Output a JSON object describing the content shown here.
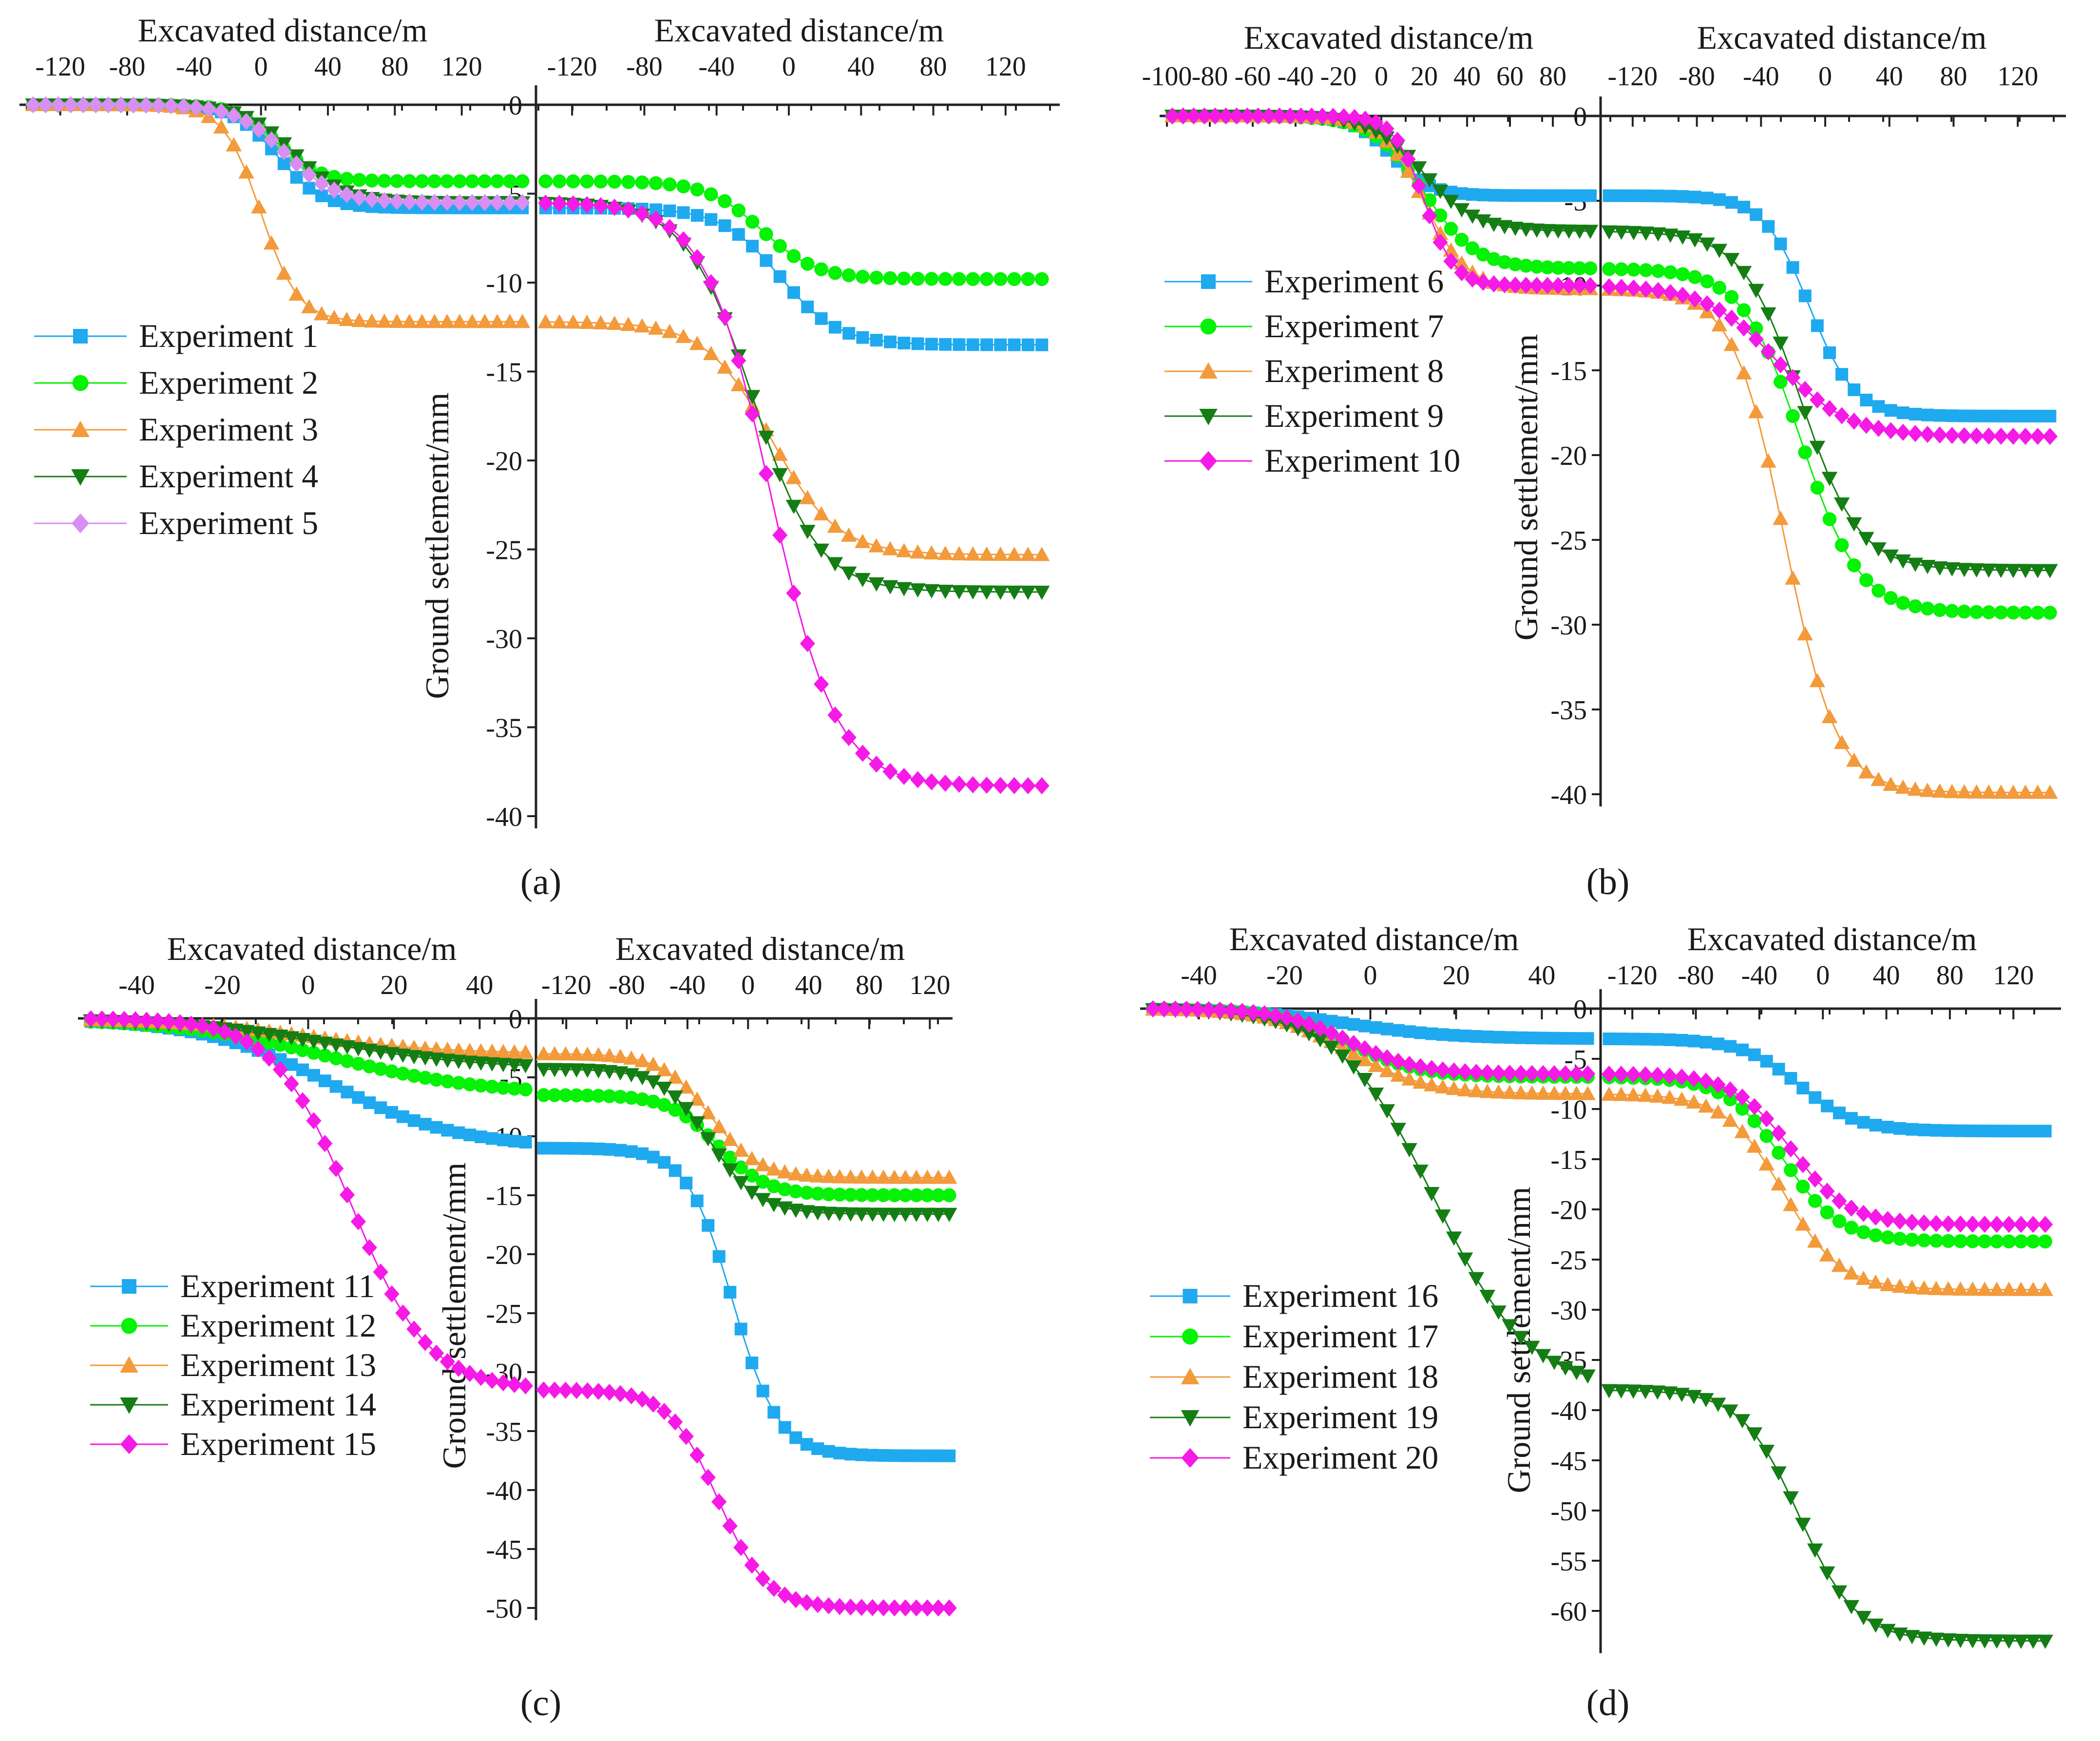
{
  "panel_labels": {
    "a": "(a)",
    "b": "(b)",
    "c": "(c)",
    "d": "(d)"
  },
  "axis_text": {
    "x_title": "Excavated distance/m",
    "y_title": "Ground settlement/mm"
  },
  "legends": {
    "a": [
      "Experiment 1",
      "Experiment 2",
      "Experiment 3",
      "Experiment 4",
      "Experiment 5"
    ],
    "b": [
      "Experiment 6",
      "Experiment 7",
      "Experiment 8",
      "Experiment 9",
      "Experiment 10"
    ],
    "c": [
      "Experiment 11",
      "Experiment 12",
      "Experiment 13",
      "Experiment 14",
      "Experiment 15"
    ],
    "d": [
      "Experiment 16",
      "Experiment 17",
      "Experiment 18",
      "Experiment 19",
      "Experiment 20"
    ]
  },
  "chart_data": [
    {
      "type": "line",
      "panel": "a",
      "xlabel_left": "Excavated distance/m",
      "xlabel_right": "Excavated distance/m",
      "ylabel": "Ground settlement/mm",
      "x_left_ticks": [
        "-120",
        "-80",
        "-40",
        "0",
        "40",
        "80",
        "120"
      ],
      "x_right_ticks": [
        "-120",
        "-80",
        "-40",
        "0",
        "40",
        "80",
        "120"
      ],
      "y_ticks": [
        "0",
        "-5",
        "-10",
        "-15",
        "-20",
        "-25",
        "-30",
        "-35",
        "-40"
      ],
      "ylim": [
        -40,
        0
      ],
      "series": [
        {
          "name": "Experiment 1",
          "color": "#1fa9ef",
          "marker": "square",
          "left": {
            "plateau": -5.8,
            "x0": 10,
            "w": 13
          },
          "right": {
            "final": -13.5,
            "x0": -5,
            "w": 16
          }
        },
        {
          "name": "Experiment 2",
          "color": "#06f206",
          "marker": "circle",
          "left": {
            "plateau": -4.3,
            "x0": 10,
            "w": 12
          },
          "right": {
            "final": -9.8,
            "x0": -15,
            "w": 15
          }
        },
        {
          "name": "Experiment 3",
          "color": "#f39a3b",
          "marker": "triangle",
          "left": {
            "plateau": -12.2,
            "x0": 0,
            "w": 11
          },
          "right": {
            "final": -25.3,
            "x0": -10,
            "w": 18
          }
        },
        {
          "name": "Experiment 4",
          "color": "#147d14",
          "marker": "triangle-down",
          "left": {
            "plateau": -5.5,
            "x0": 20,
            "w": 15
          },
          "right": {
            "final": -27.4,
            "x0": -20,
            "w": 18
          }
        },
        {
          "name": "Experiment 5",
          "color": "#d88ef2",
          "marker": "diamond",
          "left": {
            "plateau": -5.5,
            "x0": 15,
            "w": 15
          },
          "right": {
            "final": -38.3,
            "x0": -10,
            "w": 18,
            "color": "#f51ae6"
          }
        }
      ]
    },
    {
      "type": "line",
      "panel": "b",
      "xlabel_left": "Excavated distance/m",
      "xlabel_right": "Excavated distance/m",
      "ylabel": "Ground settlement/mm",
      "x_left_ticks": [
        "-100",
        "-80",
        "-60",
        "-40",
        "-20",
        "0",
        "20",
        "40",
        "60",
        "80"
      ],
      "x_right_ticks": [
        "-120",
        "-80",
        "-40",
        "0",
        "40",
        "80",
        "120"
      ],
      "y_ticks": [
        "0",
        "-5",
        "-10",
        "-15",
        "-20",
        "-25",
        "-30",
        "-35",
        "-40"
      ],
      "ylim": [
        -40,
        0
      ],
      "series": [
        {
          "name": "Experiment 6",
          "color": "#1fa9ef",
          "marker": "square",
          "left": {
            "plateau": -4.7,
            "x0": 5,
            "w": 9
          },
          "right": {
            "final": -17.7,
            "x0": -10,
            "w": 14
          }
        },
        {
          "name": "Experiment 7",
          "color": "#06f206",
          "marker": "circle",
          "left": {
            "plateau": -9.0,
            "x0": 20,
            "w": 12
          },
          "right": {
            "final": -29.3,
            "x0": -15,
            "w": 18
          }
        },
        {
          "name": "Experiment 8",
          "color": "#f39a3b",
          "marker": "triangle",
          "left": {
            "plateau": -10.2,
            "x0": 20,
            "w": 10
          },
          "right": {
            "final": -39.9,
            "x0": -25,
            "w": 16
          }
        },
        {
          "name": "Experiment 9",
          "color": "#147d14",
          "marker": "triangle-down",
          "left": {
            "plateau": -6.8,
            "x0": 20,
            "w": 12
          },
          "right": {
            "final": -26.8,
            "x0": -15,
            "w": 18
          }
        },
        {
          "name": "Experiment 10",
          "color": "#f51ae6",
          "marker": "diamond",
          "left": {
            "plateau": -10.0,
            "x0": 20,
            "w": 7
          },
          "right": {
            "final": -18.9,
            "x0": -30,
            "w": 22
          }
        }
      ]
    },
    {
      "type": "line",
      "panel": "c",
      "xlabel_left": "Excavated distance/m",
      "xlabel_right": "Excavated distance/m",
      "ylabel": "Ground settlement/mm",
      "x_left_ticks": [
        "-40",
        "-20",
        "0",
        "20",
        "40"
      ],
      "x_right_ticks": [
        "-120",
        "-80",
        "-40",
        "0",
        "40",
        "80",
        "120"
      ],
      "y_ticks": [
        "0",
        "-5",
        "-10",
        "-15",
        "-20",
        "-25",
        "-30",
        "-35",
        "-40",
        "-45",
        "-50"
      ],
      "ylim": [
        -50,
        0
      ],
      "series": [
        {
          "name": "Experiment 11",
          "color": "#1fa9ef",
          "marker": "square",
          "left": {
            "plateau": -11.0,
            "x0": 5,
            "w": 15
          },
          "right": {
            "final": -37.1,
            "x0": -10,
            "w": 15
          }
        },
        {
          "name": "Experiment 12",
          "color": "#06f206",
          "marker": "circle",
          "left": {
            "plateau": -6.5,
            "x0": 5,
            "w": 18
          },
          "right": {
            "final": -15.0,
            "x0": -20,
            "w": 16
          }
        },
        {
          "name": "Experiment 13",
          "color": "#f39a3b",
          "marker": "triangle",
          "left": {
            "plateau": -3.0,
            "x0": 0,
            "w": 16
          },
          "right": {
            "final": -13.5,
            "x0": -25,
            "w": 16
          }
        },
        {
          "name": "Experiment 14",
          "color": "#147d14",
          "marker": "triangle-down",
          "left": {
            "plateau": -4.3,
            "x0": 5,
            "w": 18
          },
          "right": {
            "final": -16.6,
            "x0": -25,
            "w": 16
          }
        },
        {
          "name": "Experiment 15",
          "color": "#f51ae6",
          "marker": "diamond",
          "left": {
            "plateau": -31.5,
            "x0": 10,
            "w": 9
          },
          "right": {
            "final": -50.0,
            "x0": -20,
            "w": 16
          }
        }
      ]
    },
    {
      "type": "line",
      "panel": "d",
      "xlabel_left": "Excavated distance/m",
      "xlabel_right": "Excavated distance/m",
      "ylabel": "Ground settlement/mm",
      "x_left_ticks": [
        "-40",
        "-20",
        "0",
        "20",
        "40"
      ],
      "x_right_ticks": [
        "-120",
        "-80",
        "-40",
        "0",
        "40",
        "80",
        "120"
      ],
      "y_ticks": [
        "0",
        "-5",
        "-10",
        "-15",
        "-20",
        "-25",
        "-30",
        "-35",
        "-40",
        "-45",
        "-50",
        "-55",
        "-60"
      ],
      "ylim": [
        -63,
        0
      ],
      "series": [
        {
          "name": "Experiment 16",
          "color": "#1fa9ef",
          "marker": "square",
          "left": {
            "plateau": -3.0,
            "x0": -5,
            "w": 12
          },
          "right": {
            "final": -12.2,
            "x0": -15,
            "w": 18
          }
        },
        {
          "name": "Experiment 17",
          "color": "#06f206",
          "marker": "circle",
          "left": {
            "plateau": -6.8,
            "x0": -5,
            "w": 8
          },
          "right": {
            "final": -23.2,
            "x0": -25,
            "w": 18
          }
        },
        {
          "name": "Experiment 18",
          "color": "#f39a3b",
          "marker": "triangle",
          "left": {
            "plateau": -8.5,
            "x0": -5,
            "w": 9
          },
          "right": {
            "final": -28.0,
            "x0": -25,
            "w": 18
          }
        },
        {
          "name": "Experiment 19",
          "color": "#147d14",
          "marker": "triangle-down",
          "left": {
            "plateau": -38.0,
            "x0": 15,
            "w": 11
          },
          "right": {
            "final": -63.0,
            "x0": -15,
            "w": 18
          }
        },
        {
          "name": "Experiment 20",
          "color": "#f51ae6",
          "marker": "diamond",
          "left": {
            "plateau": -6.5,
            "x0": -5,
            "w": 8
          },
          "right": {
            "final": -21.5,
            "x0": -20,
            "w": 18
          }
        }
      ]
    }
  ]
}
